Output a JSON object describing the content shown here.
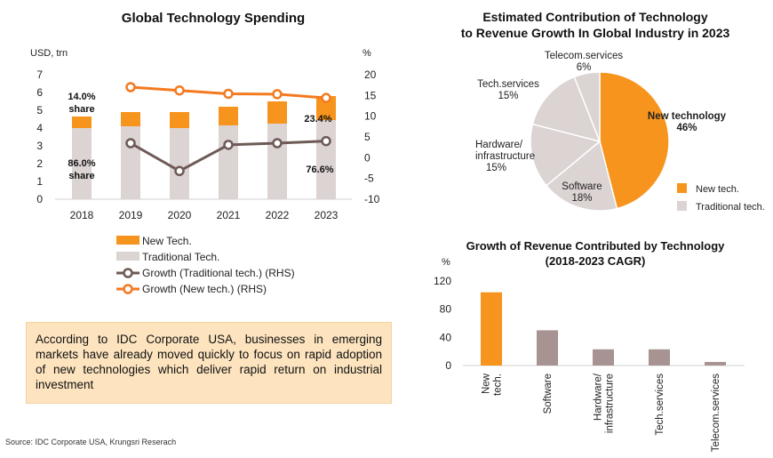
{
  "chart_data": [
    {
      "type": "bar",
      "title": "Global Technology Spending",
      "ylabel": "USD, trn",
      "y2label": "%",
      "ylim": [
        0,
        7
      ],
      "y2lim": [
        -10,
        20
      ],
      "categories": [
        "2018",
        "2019",
        "2020",
        "2021",
        "2022",
        "2023"
      ],
      "series": [
        {
          "name": "New Tech.",
          "kind": "stacked-bar",
          "color": "#f7941d",
          "values": [
            0.65,
            0.8,
            0.9,
            1.05,
            1.25,
            1.35
          ]
        },
        {
          "name": "Traditional Tech.",
          "kind": "stacked-bar",
          "color": "#dcd3d3",
          "values": [
            4.0,
            4.1,
            4.0,
            4.15,
            4.25,
            4.45
          ]
        },
        {
          "name": "Growth (Traditional tech.) (RHS)",
          "kind": "line",
          "axis": "right",
          "color": "#6d5a56",
          "values": [
            null,
            3.5,
            -3.2,
            3.1,
            3.5,
            4.0
          ]
        },
        {
          "name": "Growth (New tech.) (RHS)",
          "kind": "line",
          "axis": "right",
          "color": "#f47a20",
          "values": [
            null,
            17.0,
            16.2,
            15.4,
            15.3,
            14.4
          ]
        }
      ],
      "annotations": {
        "new_2018_pct": "14.0%",
        "new_2018_sub": "share",
        "trad_2018_pct": "86.0%",
        "trad_2018_sub": "share",
        "new_2023": "23.4%",
        "trad_2023": "76.6%"
      },
      "legend_position": "bottom"
    },
    {
      "type": "pie",
      "title_line1": "Estimated Contribution of Technology",
      "title_line2": "to Revenue Growth In Global Industry in 2023",
      "slices": [
        {
          "label": "New technology",
          "value": 46,
          "color": "#f7941d"
        },
        {
          "label": "Software",
          "value": 18,
          "color": "#dcd3d3"
        },
        {
          "label": "Hardware/ infrastructure",
          "value": 15,
          "color": "#dcd3d3"
        },
        {
          "label": "Tech.services",
          "value": 15,
          "color": "#dcd3d3"
        },
        {
          "label": "Telecom.services",
          "value": 6,
          "color": "#dcd3d3"
        }
      ],
      "legend": [
        {
          "label": "New tech.",
          "color": "#f7941d"
        },
        {
          "label": "Traditional tech.",
          "color": "#dcd3d3"
        }
      ]
    },
    {
      "type": "bar",
      "title_line1": "Growth of Revenue Contributed by Technology",
      "title_line2": "(2018-2023 CAGR)",
      "ylabel": "%",
      "ylim": [
        0,
        120
      ],
      "yticks": [
        0,
        40,
        80,
        120
      ],
      "categories": [
        "New tech.",
        "Software",
        "Hardware/ infrastructure",
        "Tech.services",
        "Telecom.services"
      ],
      "values": [
        104,
        50,
        23,
        23,
        5
      ],
      "colors": [
        "#f7941d",
        "#a79391",
        "#a79391",
        "#a79391",
        "#a79391"
      ]
    }
  ],
  "note": "According to IDC Corporate USA, businesses in emerging markets have already moved quickly to focus on rapid adoption of new technologies which deliver rapid return on industrial investment",
  "source": "Source: IDC Corporate USA, Krungsri Reserach"
}
